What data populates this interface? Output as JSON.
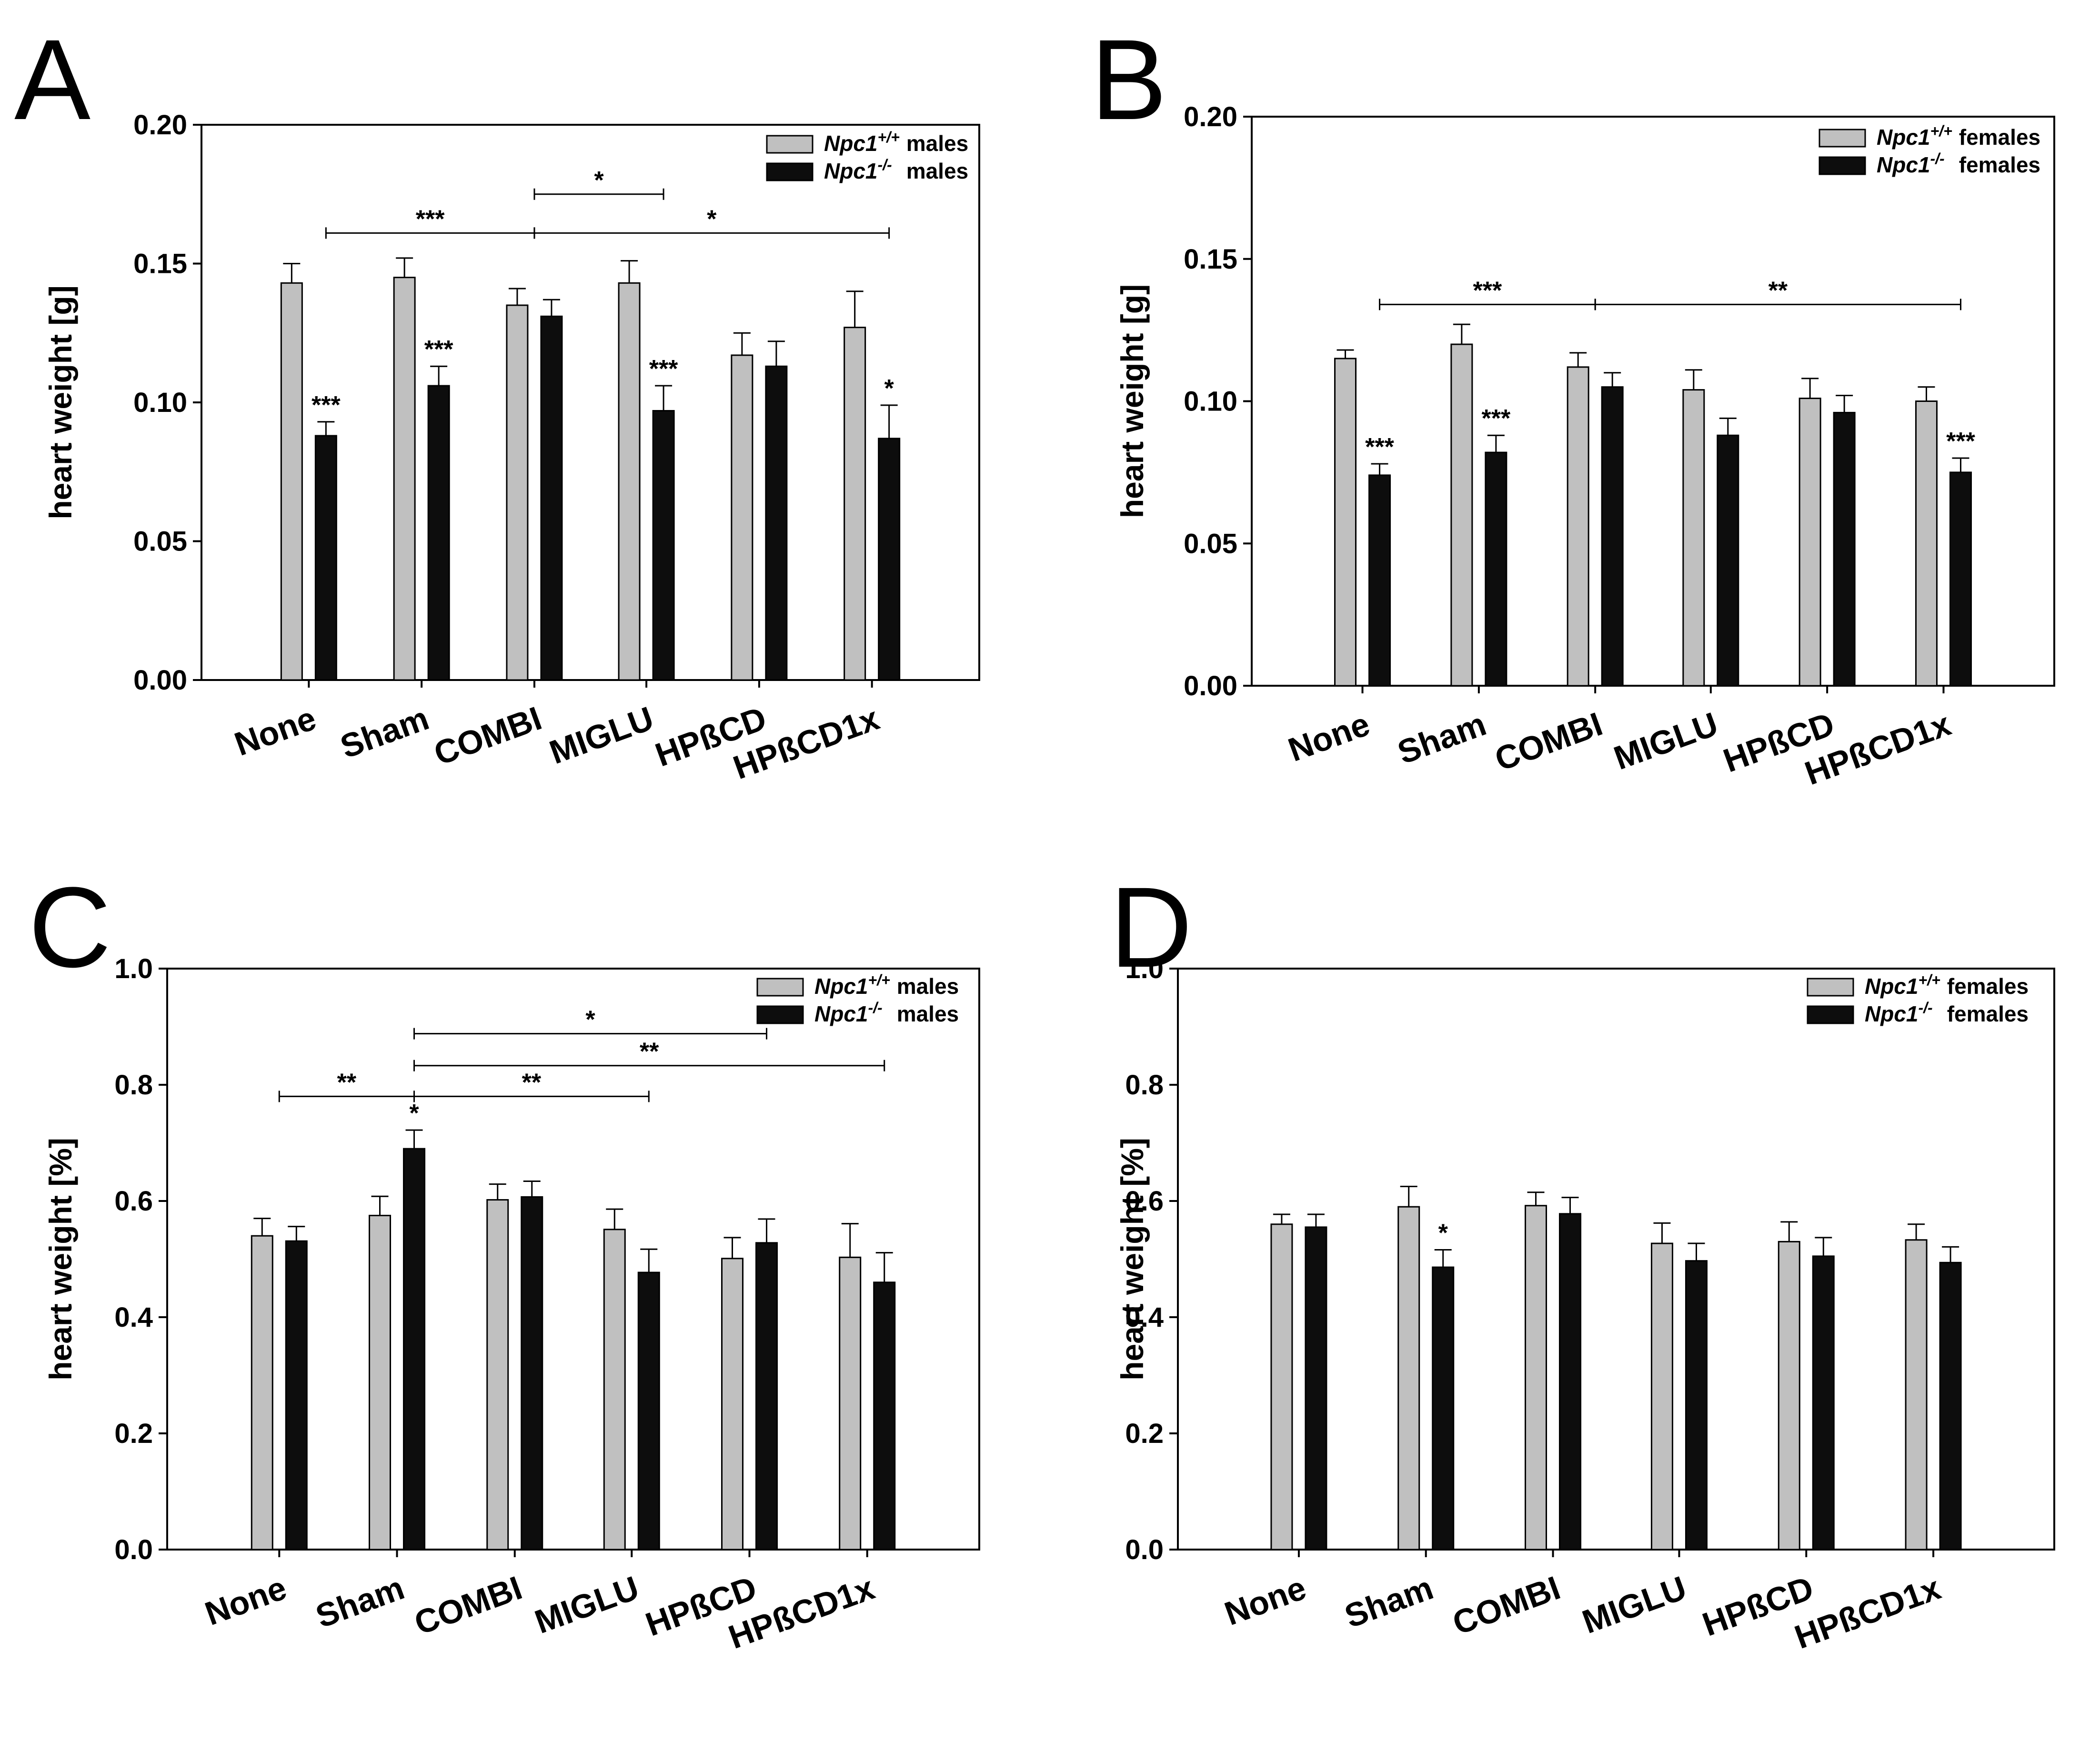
{
  "colors": {
    "wt": "#c0c0c0",
    "ko": "#0d0d0d",
    "axis": "#000000"
  },
  "legend_suffix_wt": "+/+",
  "legend_suffix_ko": "-/-",
  "legend_gene": "Npc1",
  "chart_data": [
    {
      "panel": "A",
      "type": "bar",
      "ylabel": "heart weight [g]",
      "ylim": [
        0,
        0.2
      ],
      "yticks": [
        0.0,
        0.05,
        0.1,
        0.15,
        0.2
      ],
      "yticklabels": [
        "0.00",
        "0.05",
        "0.10",
        "0.15",
        "0.20"
      ],
      "categories": [
        "None",
        "Sham",
        "COMBI",
        "MIGLU",
        "HPßCD",
        "HPßCD1x"
      ],
      "series": [
        {
          "name": "males",
          "genotype": "+/+",
          "values": [
            0.143,
            0.145,
            0.135,
            0.143,
            0.117,
            0.127
          ],
          "errors": [
            0.007,
            0.007,
            0.006,
            0.008,
            0.008,
            0.013
          ]
        },
        {
          "name": "males",
          "genotype": "-/-",
          "values": [
            0.088,
            0.106,
            0.131,
            0.097,
            0.113,
            0.087
          ],
          "errors": [
            0.005,
            0.007,
            0.006,
            0.009,
            0.009,
            0.012
          ]
        }
      ],
      "bar_annotations": [
        {
          "category": 0,
          "series": 1,
          "text": "***"
        },
        {
          "category": 1,
          "series": 1,
          "text": "***"
        },
        {
          "category": 3,
          "series": 1,
          "text": "***"
        },
        {
          "category": 5,
          "series": 1,
          "text": "*"
        }
      ],
      "brackets": [
        {
          "from": [
            0,
            1
          ],
          "to": [
            2,
            0.5
          ],
          "y": 0.161,
          "text": "***"
        },
        {
          "from": [
            2,
            0.5
          ],
          "to": [
            5,
            1
          ],
          "y": 0.161,
          "text": "*"
        },
        {
          "from": [
            2,
            0.5
          ],
          "to": [
            3,
            1
          ],
          "y": 0.175,
          "text": "*"
        }
      ],
      "legend_position": "top-right"
    },
    {
      "panel": "B",
      "type": "bar",
      "ylabel": "heart weight [g]",
      "ylim": [
        0,
        0.2
      ],
      "yticks": [
        0.0,
        0.05,
        0.1,
        0.15,
        0.2
      ],
      "yticklabels": [
        "0.00",
        "0.05",
        "0.10",
        "0.15",
        "0.20"
      ],
      "categories": [
        "None",
        "Sham",
        "COMBI",
        "MIGLU",
        "HPßCD",
        "HPßCD1x"
      ],
      "series": [
        {
          "name": "females",
          "genotype": "+/+",
          "values": [
            0.115,
            0.12,
            0.112,
            0.104,
            0.101,
            0.1
          ],
          "errors": [
            0.003,
            0.007,
            0.005,
            0.007,
            0.007,
            0.005
          ]
        },
        {
          "name": "females",
          "genotype": "-/-",
          "values": [
            0.074,
            0.082,
            0.105,
            0.088,
            0.096,
            0.075
          ],
          "errors": [
            0.004,
            0.006,
            0.005,
            0.006,
            0.006,
            0.005
          ]
        }
      ],
      "bar_annotations": [
        {
          "category": 0,
          "series": 1,
          "text": "***"
        },
        {
          "category": 1,
          "series": 1,
          "text": "***"
        },
        {
          "category": 5,
          "series": 1,
          "text": "***"
        }
      ],
      "brackets": [
        {
          "from": [
            0,
            1
          ],
          "to": [
            2,
            0.5
          ],
          "y": 0.134,
          "text": "***"
        },
        {
          "from": [
            2,
            0.5
          ],
          "to": [
            5,
            1
          ],
          "y": 0.134,
          "text": "**"
        }
      ],
      "legend_position": "top-right"
    },
    {
      "panel": "C",
      "type": "bar",
      "ylabel": "heart weight [%]",
      "ylim": [
        0,
        1.0
      ],
      "yticks": [
        0.0,
        0.2,
        0.4,
        0.6,
        0.8,
        1.0
      ],
      "yticklabels": [
        "0.0",
        "0.2",
        "0.4",
        "0.6",
        "0.8",
        "1.0"
      ],
      "categories": [
        "None",
        "Sham",
        "COMBI",
        "MIGLU",
        "HPßCD",
        "HPßCD1x"
      ],
      "series": [
        {
          "name": "males",
          "genotype": "+/+",
          "values": [
            0.54,
            0.575,
            0.602,
            0.551,
            0.501,
            0.503
          ],
          "errors": [
            0.03,
            0.033,
            0.027,
            0.035,
            0.036,
            0.058
          ]
        },
        {
          "name": "males",
          "genotype": "-/-",
          "values": [
            0.531,
            0.69,
            0.607,
            0.477,
            0.528,
            0.46
          ],
          "errors": [
            0.025,
            0.032,
            0.027,
            0.04,
            0.041,
            0.051
          ]
        }
      ],
      "bar_annotations": [
        {
          "category": 1,
          "series": 1,
          "text": "*"
        }
      ],
      "brackets": [
        {
          "from": [
            0,
            0.5
          ],
          "to": [
            1,
            1
          ],
          "y": 0.78,
          "text": "**"
        },
        {
          "from": [
            1,
            1
          ],
          "to": [
            3,
            1
          ],
          "y": 0.78,
          "text": "**"
        },
        {
          "from": [
            1,
            1
          ],
          "to": [
            5,
            1
          ],
          "y": 0.833,
          "text": "**"
        },
        {
          "from": [
            1,
            1
          ],
          "to": [
            4,
            1
          ],
          "y": 0.888,
          "text": "*"
        }
      ],
      "legend_position": "top-right"
    },
    {
      "panel": "D",
      "type": "bar",
      "ylabel": "heart weight [%]",
      "ylim": [
        0,
        1.0
      ],
      "yticks": [
        0.0,
        0.2,
        0.4,
        0.6,
        0.8,
        1.0
      ],
      "yticklabels": [
        "0.0",
        "0.2",
        "0.4",
        "0.6",
        "0.8",
        "1.0"
      ],
      "categories": [
        "None",
        "Sham",
        "COMBI",
        "MIGLU",
        "HPßCD",
        "HPßCD1x"
      ],
      "series": [
        {
          "name": "females",
          "genotype": "+/+",
          "values": [
            0.56,
            0.59,
            0.592,
            0.527,
            0.53,
            0.533
          ],
          "errors": [
            0.017,
            0.035,
            0.023,
            0.035,
            0.034,
            0.027
          ]
        },
        {
          "name": "females",
          "genotype": "-/-",
          "values": [
            0.555,
            0.486,
            0.578,
            0.497,
            0.505,
            0.494
          ],
          "errors": [
            0.022,
            0.03,
            0.028,
            0.03,
            0.032,
            0.027
          ]
        }
      ],
      "bar_annotations": [
        {
          "category": 1,
          "series": 1,
          "text": "*"
        }
      ],
      "brackets": [],
      "legend_position": "top-right"
    }
  ]
}
